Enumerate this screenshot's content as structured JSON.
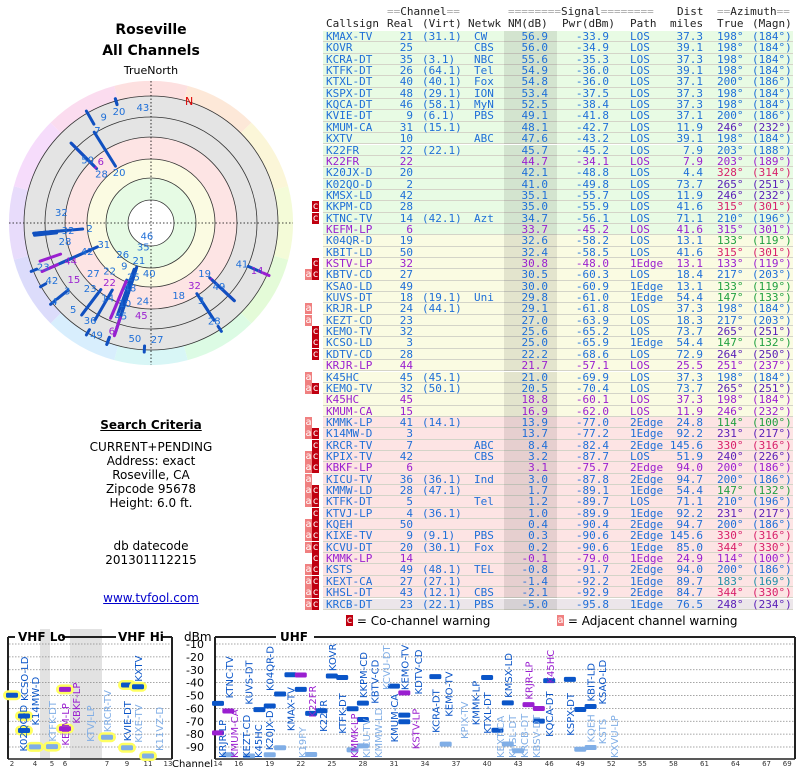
{
  "left": {
    "city": "Roseville",
    "scope": "All Channels",
    "north_label": "TrueNorth",
    "n_marker": "N",
    "criteria_title": "Search Criteria",
    "criteria_lines": [
      "CURRENT+PENDING",
      "Address: exact",
      "Roseville, CA",
      "Zipcode 95678",
      "Height: 6.0 ft."
    ],
    "db_label": "db datecode",
    "db_value": "201301112215",
    "link": "www.tvfool.com"
  },
  "table": {
    "group_channel": "Channel",
    "group_signal": "Signal",
    "group_dist": "Dist",
    "group_azimuth": "Azimuth",
    "headers": {
      "callsign": "Callsign",
      "real": "Real",
      "virt": "(Virt)",
      "netwk": "Netwk",
      "nm": "NM(dB)",
      "pwr": "Pwr(dBm)",
      "path": "Path",
      "dist": "miles",
      "true": "True",
      "magn": "(Magn)"
    },
    "rows": [
      [
        "",
        "KMAX-TV",
        "21",
        "(31.1)",
        "CW",
        "56.9",
        "-33.9",
        "LOS",
        "37.3",
        "198°",
        "(184°)",
        0
      ],
      [
        "",
        "KOVR",
        "25",
        "",
        "CBS",
        "56.0",
        "-34.9",
        "LOS",
        "39.1",
        "198°",
        "(184°)",
        0
      ],
      [
        "",
        "KCRA-DT",
        "35",
        "(3.1)",
        "NBC",
        "55.6",
        "-35.3",
        "LOS",
        "37.3",
        "198°",
        "(184°)",
        0
      ],
      [
        "",
        "KTFK-DT",
        "26",
        "(64.1)",
        "Tel",
        "54.9",
        "-36.0",
        "LOS",
        "39.1",
        "198°",
        "(184°)",
        0
      ],
      [
        "",
        "KTXL-DT",
        "40",
        "(40.1)",
        "Fox",
        "54.8",
        "-36.0",
        "LOS",
        "37.1",
        "200°",
        "(186°)",
        0
      ],
      [
        "",
        "KSPX-DT",
        "48",
        "(29.1)",
        "ION",
        "53.4",
        "-37.5",
        "LOS",
        "37.3",
        "198°",
        "(184°)",
        0
      ],
      [
        "",
        "KQCA-DT",
        "46",
        "(58.1)",
        "MyN",
        "52.5",
        "-38.4",
        "LOS",
        "37.3",
        "198°",
        "(184°)",
        0
      ],
      [
        "",
        "KVIE-DT",
        "9",
        "(6.1)",
        "PBS",
        "49.1",
        "-41.8",
        "LOS",
        "37.1",
        "200°",
        "(186°)",
        0
      ],
      [
        "",
        "KMUM-CA",
        "31",
        "(15.1)",
        "",
        "48.1",
        "-42.7",
        "LOS",
        "11.9",
        "246°",
        "(232°)",
        0
      ],
      [
        "",
        "KXTV",
        "10",
        "",
        "ABC",
        "47.6",
        "-43.2",
        "LOS",
        "39.1",
        "198°",
        "(184°)",
        0
      ],
      [
        "",
        "K22FR",
        "22",
        "(22.1)",
        "",
        "45.7",
        "-45.2",
        "LOS",
        "7.9",
        "203°",
        "(188°)",
        0
      ],
      [
        "",
        "K22FR",
        "22",
        "",
        "",
        "44.7",
        "-34.1",
        "LOS",
        "7.9",
        "203°",
        "(189°)",
        1
      ],
      [
        "",
        "K20JX-D",
        "20",
        "",
        "",
        "42.1",
        "-48.8",
        "LOS",
        "4.4",
        "328°",
        "(314°)",
        0
      ],
      [
        "",
        "K02QO-D",
        "2",
        "",
        "",
        "41.0",
        "-49.8",
        "LOS",
        "73.7",
        "265°",
        "(251°)",
        0
      ],
      [
        "",
        "KMSX-LD",
        "42",
        "",
        "",
        "35.1",
        "-55.7",
        "LOS",
        "11.9",
        "246°",
        "(232°)",
        0
      ],
      [
        "c",
        "KKPM-CD",
        "28",
        "",
        "",
        "35.0",
        "-55.9",
        "LOS",
        "41.6",
        "315°",
        "(301°)",
        0
      ],
      [
        "c",
        "KTNC-TV",
        "14",
        "(42.1)",
        "Azt",
        "34.7",
        "-56.1",
        "LOS",
        "71.1",
        "210°",
        "(196°)",
        0
      ],
      [
        "",
        "KEFM-LP",
        "6",
        "",
        "",
        "33.7",
        "-45.2",
        "LOS",
        "41.6",
        "315°",
        "(301°)",
        1
      ],
      [
        "",
        "K04QR-D",
        "19",
        "",
        "",
        "32.6",
        "-58.2",
        "LOS",
        "13.1",
        "133°",
        "(119°)",
        0
      ],
      [
        "",
        "KBIT-LD",
        "50",
        "",
        "",
        "32.4",
        "-58.5",
        "LOS",
        "41.6",
        "315°",
        "(301°)",
        0
      ],
      [
        "c",
        "KSTV-LP",
        "32",
        "",
        "",
        "30.8",
        "-48.0",
        "1Edge",
        "13.1",
        "133°",
        "(119°)",
        1
      ],
      [
        "ac",
        "KBTV-CD",
        "27",
        "",
        "",
        "30.5",
        "-60.3",
        "LOS",
        "18.4",
        "217°",
        "(203°)",
        0
      ],
      [
        "",
        "KSAO-LD",
        "49",
        "",
        "",
        "30.0",
        "-60.9",
        "1Edge",
        "13.1",
        "133°",
        "(119°)",
        0
      ],
      [
        "",
        "KUVS-DT",
        "18",
        "(19.1)",
        "Uni",
        "29.8",
        "-61.0",
        "1Edge",
        "54.4",
        "147°",
        "(133°)",
        0
      ],
      [
        "a",
        "KRJR-LP",
        "24",
        "(44.1)",
        "",
        "29.1",
        "-61.8",
        "LOS",
        "37.3",
        "198°",
        "(184°)",
        0
      ],
      [
        "a",
        "KEZT-CD",
        "23",
        "",
        "",
        "27.0",
        "-63.9",
        "LOS",
        "18.3",
        "217°",
        "(203°)",
        0
      ],
      [
        "c",
        "KEMO-TV",
        "32",
        "",
        "",
        "25.6",
        "-65.2",
        "LOS",
        "73.7",
        "265°",
        "(251°)",
        0
      ],
      [
        "c",
        "KCSO-LD",
        "3",
        "",
        "",
        "25.0",
        "-65.9",
        "1Edge",
        "54.4",
        "147°",
        "(132°)",
        0
      ],
      [
        "c",
        "KDTV-CD",
        "28",
        "",
        "",
        "22.2",
        "-68.6",
        "LOS",
        "72.9",
        "264°",
        "(250°)",
        0
      ],
      [
        "",
        "KRJR-LP",
        "44",
        "",
        "",
        "21.7",
        "-57.1",
        "LOS",
        "25.5",
        "251°",
        "(237°)",
        1
      ],
      [
        "a",
        "K45HC",
        "45",
        "(45.1)",
        "",
        "21.0",
        "-69.9",
        "LOS",
        "37.3",
        "198°",
        "(184°)",
        0
      ],
      [
        "ac",
        "KEMO-TV",
        "32",
        "(50.1)",
        "",
        "20.5",
        "-70.4",
        "LOS",
        "73.7",
        "265°",
        "(251°)",
        0
      ],
      [
        "",
        "K45HC",
        "45",
        "",
        "",
        "18.8",
        "-60.1",
        "LOS",
        "37.3",
        "198°",
        "(184°)",
        1
      ],
      [
        "",
        "KMUM-CA",
        "15",
        "",
        "",
        "16.9",
        "-62.0",
        "LOS",
        "11.9",
        "246°",
        "(232°)",
        1
      ],
      [
        "a",
        "KMMK-LP",
        "41",
        "(14.1)",
        "",
        "13.9",
        "-77.0",
        "2Edge",
        "24.8",
        "114°",
        "(100°)",
        0
      ],
      [
        "ac",
        "K14MW-D",
        "3",
        "",
        "",
        "13.7",
        "-77.2",
        "1Edge",
        "92.2",
        "231°",
        "(217°)",
        0
      ],
      [
        "c",
        "KRCR-TV",
        "7",
        "",
        "ABC",
        "8.4",
        "-82.4",
        "2Edge",
        "145.6",
        "330°",
        "(316°)",
        0
      ],
      [
        "ac",
        "KPIX-TV",
        "42",
        "",
        "CBS",
        "3.2",
        "-87.7",
        "LOS",
        "51.9",
        "240°",
        "(226°)",
        0
      ],
      [
        "ac",
        "KBKF-LP",
        "6",
        "",
        "",
        "3.1",
        "-75.7",
        "2Edge",
        "94.0",
        "200°",
        "(186°)",
        1
      ],
      [
        "a",
        "KICU-TV",
        "36",
        "(36.1)",
        "Ind",
        "3.0",
        "-87.8",
        "2Edge",
        "94.7",
        "200°",
        "(186°)",
        0
      ],
      [
        "ac",
        "KMMW-LD",
        "28",
        "(47.1)",
        "",
        "1.7",
        "-89.1",
        "1Edge",
        "54.4",
        "147°",
        "(132°)",
        0
      ],
      [
        "ac",
        "KTFK-DT",
        "5",
        "",
        "Tel",
        "1.2",
        "-89.7",
        "LOS",
        "71.1",
        "210°",
        "(196°)",
        0
      ],
      [
        "c",
        "KTVJ-LP",
        "4",
        "(36.1)",
        "",
        "1.0",
        "-89.9",
        "1Edge",
        "92.2",
        "231°",
        "(217°)",
        0
      ],
      [
        "ac",
        "KQEH",
        "50",
        "",
        "",
        "0.4",
        "-90.4",
        "2Edge",
        "94.7",
        "200°",
        "(186°)",
        0
      ],
      [
        "ac",
        "KIXE-TV",
        "9",
        "(9.1)",
        "PBS",
        "0.3",
        "-90.6",
        "2Edge",
        "145.6",
        "330°",
        "(316°)",
        0
      ],
      [
        "ac",
        "KCVU-DT",
        "20",
        "(30.1)",
        "Fox",
        "0.2",
        "-90.6",
        "1Edge",
        "85.0",
        "344°",
        "(330°)",
        0
      ],
      [
        "c",
        "KMMK-LP",
        "14",
        "",
        "",
        "-0.1",
        "-79.0",
        "1Edge",
        "24.9",
        "114°",
        "(100°)",
        1
      ],
      [
        "ac",
        "KSTS",
        "49",
        "(48.1)",
        "TEL",
        "-0.8",
        "-91.7",
        "2Edge",
        "94.0",
        "200°",
        "(186°)",
        0
      ],
      [
        "ac",
        "KEXT-CA",
        "27",
        "(27.1)",
        "",
        "-1.4",
        "-92.2",
        "1Edge",
        "89.7",
        "183°",
        "(169°)",
        0
      ],
      [
        "ac",
        "KHSL-DT",
        "43",
        "(12.1)",
        "CBS",
        "-2.1",
        "-92.9",
        "2Edge",
        "84.7",
        "344°",
        "(330°)",
        0
      ],
      [
        "ac",
        "KRCB-DT",
        "23",
        "(22.1)",
        "PBS",
        "-5.0",
        "-95.8",
        "1Edge",
        "76.5",
        "248°",
        "(234°)",
        0
      ]
    ]
  },
  "legend": {
    "co_flag": "c",
    "co_text": "= Co-channel warning",
    "adj_flag": "a",
    "adj_text": "= Adjacent channel warning"
  },
  "spectrum": {
    "vhf_lo": "VHF Lo",
    "vhf_hi": "VHF Hi",
    "uhf": "UHF",
    "unit": "dBm",
    "channel_label": "Channel",
    "y_ticks": [
      -10,
      -20,
      -30,
      -40,
      -50,
      -60,
      -70,
      -80,
      -90
    ],
    "vhf_ticks": [
      2,
      4,
      5,
      6,
      7,
      9,
      11,
      13
    ],
    "uhf_ticks": [
      14,
      16,
      19,
      22,
      25,
      28,
      31,
      34,
      37,
      40,
      43,
      46,
      49,
      52,
      55,
      58,
      61,
      64,
      67,
      69
    ],
    "extra_stations": [
      [
        "K11VZ-D",
        11,
        -101
      ],
      [
        "KBSV-DT",
        15,
        -96
      ],
      [
        "KXVU-LP",
        17,
        -98
      ],
      [
        "K19FY",
        19,
        -96
      ]
    ]
  },
  "colors": {
    "blue": "#1f6fd8",
    "purple": "#9a1fd0",
    "green_row": "#e8fbe4",
    "yellow_row": "#fafbe2",
    "pink_row": "#fde4e4",
    "grey_row": "#ece6ea"
  }
}
